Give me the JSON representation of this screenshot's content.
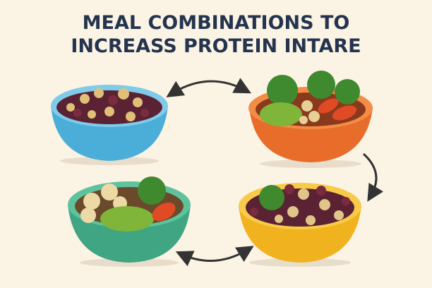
{
  "title": {
    "line1": "MEAL COMBINATIONS TO",
    "line2": "INCREASS PROTEIN INTARE"
  },
  "bowls": [
    {
      "name": "beans-and-chickpeas",
      "color": "#5bb8de"
    },
    {
      "name": "broccoli-chickpeas-carrot",
      "color": "#ee7a35"
    },
    {
      "name": "chickpeas-broccoli-carrot",
      "color": "#4fb58f"
    },
    {
      "name": "beans-broccoli-chickpeas",
      "color": "#f5bd2c"
    }
  ],
  "colors": {
    "background": "#fbf3e4",
    "title": "#24344f",
    "arrow": "#333333"
  }
}
